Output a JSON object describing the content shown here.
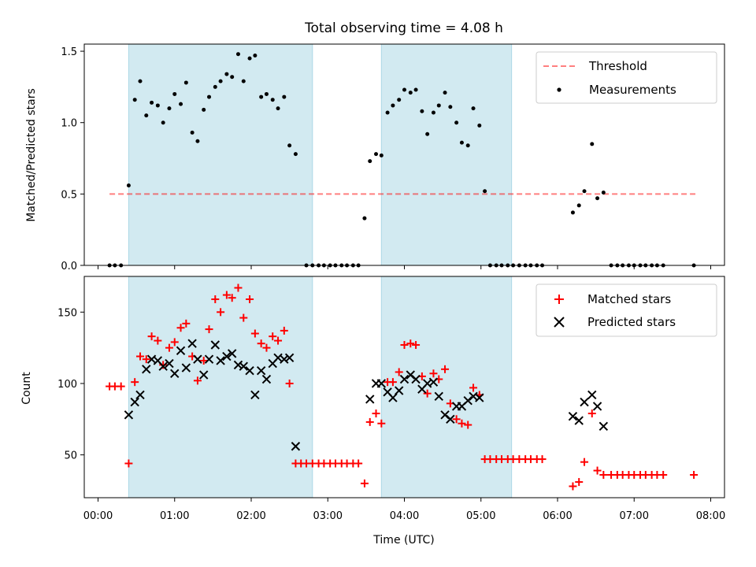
{
  "chart_data": [
    {
      "type": "scatter",
      "title": "Total observing time = 4.08 h",
      "xlabel": "",
      "ylabel": "Matched/Predicted stars",
      "x_unit": "hours (UTC)",
      "xlim": [
        -0.18,
        8.18
      ],
      "ylim": [
        0,
        1.55
      ],
      "yticks": [
        0.0,
        0.5,
        1.0,
        1.5
      ],
      "ytick_labels": [
        "0.0",
        "0.5",
        "1.0",
        "1.5"
      ],
      "shaded_intervals": [
        [
          0.4,
          2.8
        ],
        [
          3.7,
          5.4
        ]
      ],
      "shade_color": "#add8e6",
      "threshold": {
        "name": "Threshold",
        "value": 0.5,
        "x_range": [
          0.15,
          7.8
        ],
        "color": "#ff0000"
      },
      "legend_position": "top-right",
      "series": [
        {
          "name": "Measurements",
          "color": "#000000",
          "points": [
            [
              0.15,
              0
            ],
            [
              0.22,
              0
            ],
            [
              0.3,
              0
            ],
            [
              0.4,
              0.56
            ],
            [
              0.48,
              1.16
            ],
            [
              0.55,
              1.29
            ],
            [
              0.63,
              1.05
            ],
            [
              0.7,
              1.14
            ],
            [
              0.78,
              1.12
            ],
            [
              0.85,
              1.0
            ],
            [
              0.93,
              1.1
            ],
            [
              1.0,
              1.2
            ],
            [
              1.08,
              1.13
            ],
            [
              1.15,
              1.28
            ],
            [
              1.23,
              0.93
            ],
            [
              1.3,
              0.87
            ],
            [
              1.38,
              1.09
            ],
            [
              1.45,
              1.18
            ],
            [
              1.53,
              1.25
            ],
            [
              1.6,
              1.29
            ],
            [
              1.68,
              1.34
            ],
            [
              1.75,
              1.32
            ],
            [
              1.83,
              1.48
            ],
            [
              1.9,
              1.29
            ],
            [
              1.98,
              1.45
            ],
            [
              2.05,
              1.47
            ],
            [
              2.13,
              1.18
            ],
            [
              2.2,
              1.2
            ],
            [
              2.28,
              1.16
            ],
            [
              2.35,
              1.1
            ],
            [
              2.43,
              1.18
            ],
            [
              2.5,
              0.84
            ],
            [
              2.58,
              0.78
            ],
            [
              2.72,
              0
            ],
            [
              2.8,
              0
            ],
            [
              2.88,
              0
            ],
            [
              2.95,
              0
            ],
            [
              3.03,
              0
            ],
            [
              3.1,
              0
            ],
            [
              3.18,
              0
            ],
            [
              3.25,
              0
            ],
            [
              3.33,
              0
            ],
            [
              3.4,
              0
            ],
            [
              3.48,
              0.33
            ],
            [
              3.55,
              0.73
            ],
            [
              3.63,
              0.78
            ],
            [
              3.7,
              0.77
            ],
            [
              3.78,
              1.07
            ],
            [
              3.85,
              1.12
            ],
            [
              3.93,
              1.16
            ],
            [
              4.0,
              1.23
            ],
            [
              4.08,
              1.21
            ],
            [
              4.15,
              1.23
            ],
            [
              4.23,
              1.08
            ],
            [
              4.3,
              0.92
            ],
            [
              4.38,
              1.07
            ],
            [
              4.45,
              1.12
            ],
            [
              4.53,
              1.21
            ],
            [
              4.6,
              1.11
            ],
            [
              4.68,
              1.0
            ],
            [
              4.75,
              0.86
            ],
            [
              4.83,
              0.84
            ],
            [
              4.9,
              1.1
            ],
            [
              4.98,
              0.98
            ],
            [
              5.05,
              0.52
            ],
            [
              5.12,
              0
            ],
            [
              5.2,
              0
            ],
            [
              5.27,
              0
            ],
            [
              5.35,
              0
            ],
            [
              5.42,
              0
            ],
            [
              5.5,
              0
            ],
            [
              5.58,
              0
            ],
            [
              5.65,
              0
            ],
            [
              5.73,
              0
            ],
            [
              5.8,
              0
            ],
            [
              6.2,
              0.37
            ],
            [
              6.28,
              0.42
            ],
            [
              6.35,
              0.52
            ],
            [
              6.45,
              0.85
            ],
            [
              6.52,
              0.47
            ],
            [
              6.6,
              0.51
            ],
            [
              6.7,
              0
            ],
            [
              6.78,
              0
            ],
            [
              6.85,
              0
            ],
            [
              6.93,
              0
            ],
            [
              7.0,
              0
            ],
            [
              7.08,
              0
            ],
            [
              7.15,
              0
            ],
            [
              7.23,
              0
            ],
            [
              7.3,
              0
            ],
            [
              7.38,
              0
            ],
            [
              7.78,
              0
            ]
          ]
        }
      ]
    },
    {
      "type": "scatter",
      "title": "",
      "xlabel": "Time (UTC)",
      "ylabel": "Count",
      "x_unit": "hours (UTC)",
      "xlim": [
        -0.18,
        8.18
      ],
      "ylim": [
        20,
        175
      ],
      "xticks": [
        0,
        1,
        2,
        3,
        4,
        5,
        6,
        7,
        8
      ],
      "xtick_labels": [
        "00:00",
        "01:00",
        "02:00",
        "03:00",
        "04:00",
        "05:00",
        "06:00",
        "07:00",
        "08:00"
      ],
      "yticks": [
        50,
        100,
        150
      ],
      "ytick_labels": [
        "50",
        "100",
        "150"
      ],
      "shaded_intervals": [
        [
          0.4,
          2.8
        ],
        [
          3.7,
          5.4
        ]
      ],
      "shade_color": "#add8e6",
      "legend_position": "top-right",
      "series": [
        {
          "name": "Matched stars",
          "color": "#ff0000",
          "marker": "plus",
          "points": [
            [
              0.15,
              98
            ],
            [
              0.22,
              98
            ],
            [
              0.3,
              98
            ],
            [
              0.4,
              44
            ],
            [
              0.48,
              101
            ],
            [
              0.55,
              119
            ],
            [
              0.63,
              117
            ],
            [
              0.7,
              133
            ],
            [
              0.78,
              130
            ],
            [
              0.85,
              113
            ],
            [
              0.93,
              125
            ],
            [
              1.0,
              129
            ],
            [
              1.08,
              139
            ],
            [
              1.15,
              142
            ],
            [
              1.23,
              119
            ],
            [
              1.3,
              102
            ],
            [
              1.38,
              116
            ],
            [
              1.45,
              138
            ],
            [
              1.53,
              159
            ],
            [
              1.6,
              150
            ],
            [
              1.68,
              162
            ],
            [
              1.75,
              160
            ],
            [
              1.83,
              167
            ],
            [
              1.9,
              146
            ],
            [
              1.98,
              159
            ],
            [
              2.05,
              135
            ],
            [
              2.13,
              128
            ],
            [
              2.2,
              125
            ],
            [
              2.28,
              133
            ],
            [
              2.35,
              130
            ],
            [
              2.43,
              137
            ],
            [
              2.5,
              100
            ],
            [
              2.58,
              44
            ],
            [
              2.65,
              44
            ],
            [
              2.72,
              44
            ],
            [
              2.8,
              44
            ],
            [
              2.88,
              44
            ],
            [
              2.95,
              44
            ],
            [
              3.03,
              44
            ],
            [
              3.1,
              44
            ],
            [
              3.18,
              44
            ],
            [
              3.25,
              44
            ],
            [
              3.33,
              44
            ],
            [
              3.4,
              44
            ],
            [
              3.48,
              30
            ],
            [
              3.55,
              73
            ],
            [
              3.63,
              79
            ],
            [
              3.7,
              72
            ],
            [
              3.78,
              101
            ],
            [
              3.85,
              101
            ],
            [
              3.93,
              108
            ],
            [
              4.0,
              127
            ],
            [
              4.08,
              128
            ],
            [
              4.15,
              127
            ],
            [
              4.23,
              105
            ],
            [
              4.3,
              93
            ],
            [
              4.38,
              107
            ],
            [
              4.45,
              103
            ],
            [
              4.53,
              110
            ],
            [
              4.6,
              86
            ],
            [
              4.68,
              75
            ],
            [
              4.75,
              72
            ],
            [
              4.83,
              71
            ],
            [
              4.9,
              97
            ],
            [
              4.98,
              92
            ],
            [
              5.05,
              47
            ],
            [
              5.12,
              47
            ],
            [
              5.2,
              47
            ],
            [
              5.27,
              47
            ],
            [
              5.35,
              47
            ],
            [
              5.42,
              47
            ],
            [
              5.5,
              47
            ],
            [
              5.58,
              47
            ],
            [
              5.65,
              47
            ],
            [
              5.73,
              47
            ],
            [
              5.8,
              47
            ],
            [
              6.2,
              28
            ],
            [
              6.28,
              31
            ],
            [
              6.35,
              45
            ],
            [
              6.45,
              79
            ],
            [
              6.52,
              39
            ],
            [
              6.6,
              36
            ],
            [
              6.7,
              36
            ],
            [
              6.78,
              36
            ],
            [
              6.85,
              36
            ],
            [
              6.93,
              36
            ],
            [
              7.0,
              36
            ],
            [
              7.08,
              36
            ],
            [
              7.15,
              36
            ],
            [
              7.23,
              36
            ],
            [
              7.3,
              36
            ],
            [
              7.38,
              36
            ],
            [
              7.78,
              36
            ]
          ]
        },
        {
          "name": "Predicted stars",
          "color": "#000000",
          "marker": "x",
          "points": [
            [
              0.4,
              78
            ],
            [
              0.48,
              87
            ],
            [
              0.55,
              92
            ],
            [
              0.63,
              110
            ],
            [
              0.7,
              117
            ],
            [
              0.78,
              116
            ],
            [
              0.85,
              112
            ],
            [
              0.93,
              114
            ],
            [
              1.0,
              107
            ],
            [
              1.08,
              123
            ],
            [
              1.15,
              111
            ],
            [
              1.23,
              128
            ],
            [
              1.3,
              117
            ],
            [
              1.38,
              106
            ],
            [
              1.45,
              117
            ],
            [
              1.53,
              127
            ],
            [
              1.6,
              116
            ],
            [
              1.68,
              119
            ],
            [
              1.75,
              121
            ],
            [
              1.83,
              113
            ],
            [
              1.9,
              112
            ],
            [
              1.98,
              109
            ],
            [
              2.05,
              92
            ],
            [
              2.13,
              109
            ],
            [
              2.2,
              103
            ],
            [
              2.28,
              114
            ],
            [
              2.35,
              118
            ],
            [
              2.43,
              117
            ],
            [
              2.5,
              118
            ],
            [
              2.58,
              56
            ],
            [
              3.55,
              89
            ],
            [
              3.63,
              100
            ],
            [
              3.7,
              100
            ],
            [
              3.78,
              94
            ],
            [
              3.85,
              90
            ],
            [
              3.93,
              95
            ],
            [
              4.0,
              103
            ],
            [
              4.08,
              106
            ],
            [
              4.15,
              103
            ],
            [
              4.23,
              96
            ],
            [
              4.3,
              100
            ],
            [
              4.38,
              101
            ],
            [
              4.45,
              91
            ],
            [
              4.53,
              78
            ],
            [
              4.6,
              75
            ],
            [
              4.68,
              84
            ],
            [
              4.75,
              84
            ],
            [
              4.83,
              88
            ],
            [
              4.9,
              91
            ],
            [
              4.98,
              90
            ],
            [
              6.2,
              77
            ],
            [
              6.28,
              74
            ],
            [
              6.35,
              87
            ],
            [
              6.45,
              92
            ],
            [
              6.52,
              84
            ],
            [
              6.6,
              70
            ]
          ]
        }
      ]
    }
  ]
}
